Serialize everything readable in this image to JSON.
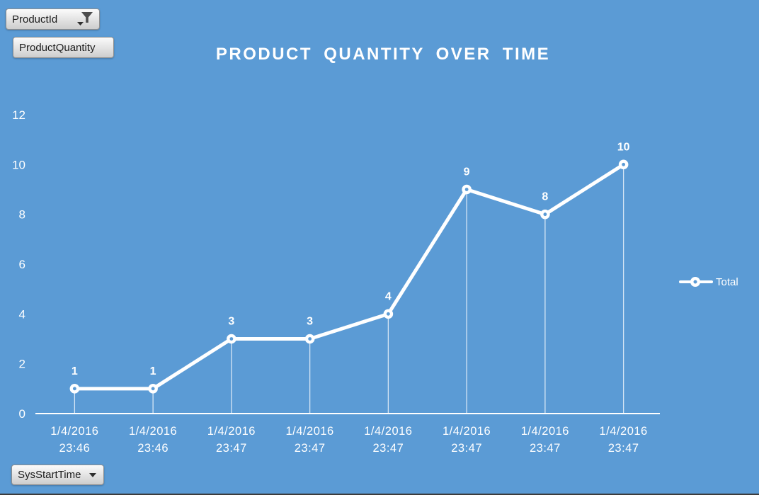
{
  "app": {
    "background_color": "#5B9BD5",
    "window_bottom_border_color": "#3c3c3c"
  },
  "filters": {
    "product_id": {
      "label": "ProductId",
      "icon": "filter-funnel-icon",
      "type": "pivot-filter-button"
    },
    "product_quantity": {
      "label": "ProductQuantity",
      "type": "pivot-field-button"
    },
    "sys_start_time": {
      "label": "SysStartTime",
      "icon": "chevron-down-icon",
      "type": "pivot-axis-dropdown"
    }
  },
  "chart_data": {
    "type": "line",
    "title": "PRODUCT QUANTITY OVER TIME",
    "categories": [
      "1/4/2016\n23:46",
      "1/4/2016\n23:46",
      "1/4/2016\n23:47",
      "1/4/2016\n23:47",
      "1/4/2016\n23:47",
      "1/4/2016\n23:47",
      "1/4/2016\n23:47",
      "1/4/2016\n23:47"
    ],
    "series": [
      {
        "name": "Total",
        "values": [
          1,
          1,
          3,
          3,
          4,
          9,
          8,
          10
        ]
      }
    ],
    "data_labels": [
      "1",
      "1",
      "3",
      "3",
      "4",
      "9",
      "8",
      "10"
    ],
    "xlabel": "",
    "ylabel": "",
    "ylim": [
      0,
      12
    ],
    "yticks": [
      0,
      2,
      4,
      6,
      8,
      10,
      12
    ],
    "grid": false,
    "legend_position": "right",
    "style": {
      "background": "#5B9BD5",
      "series_color": "#FFFFFF",
      "marker": "white-donut",
      "drop_lines": true,
      "axis_line_color": "#FFFFFF",
      "text_color": "#FFFFFF"
    }
  }
}
